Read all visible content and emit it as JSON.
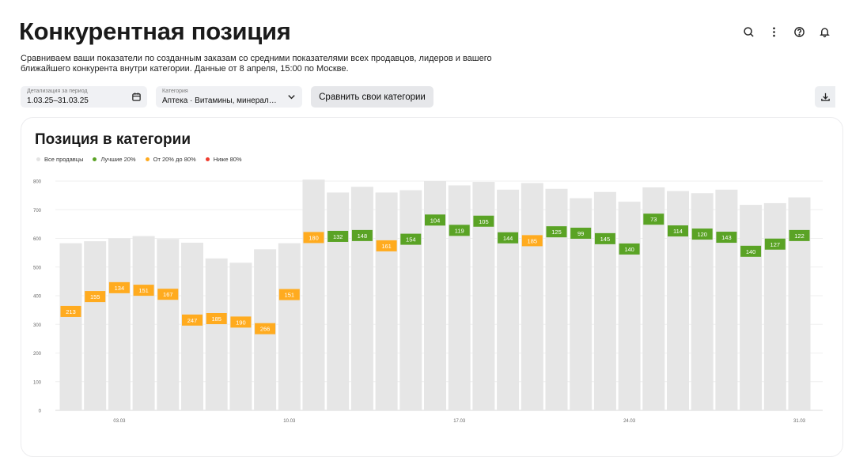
{
  "header": {
    "title": "Конкурентная позиция",
    "description": "Сравниваем ваши показатели по созданным заказам со средними показателями всех продавцов, лидеров и вашего ближайшего конкурента внутри категории. Данные от 8 апреля, 15:00 по Москве.",
    "icons": [
      "search-icon",
      "more-vertical-icon",
      "help-icon",
      "bell-icon"
    ]
  },
  "filters": {
    "period": {
      "label": "Детализация за период",
      "value": "1.03.25–31.03.25",
      "icon": "calendar-icon"
    },
    "category": {
      "label": "Категория",
      "value": "Аптека · Витамины, минералы, д...",
      "icon": "chevron-down-icon"
    },
    "compare_label": "Сравнить свои категории",
    "download_icon": "download-icon"
  },
  "card": {
    "title": "Позиция в категории",
    "legend": [
      {
        "name": "Все продавцы",
        "color": "#e6e6e6"
      },
      {
        "name": "Лучшие 20%",
        "color": "#5aa325"
      },
      {
        "name": "От 20% до 80%",
        "color": "#ffab1f"
      },
      {
        "name": "Ниже 80%",
        "color": "#f03c2e"
      }
    ]
  },
  "chart_data": {
    "type": "bar",
    "ylim": [
      0,
      800
    ],
    "y_ticks": [
      0,
      100,
      200,
      300,
      400,
      500,
      600,
      700,
      800
    ],
    "x_tick_labels": [
      {
        "day": 3,
        "label": "03.03"
      },
      {
        "day": 10,
        "label": "10.03"
      },
      {
        "day": 17,
        "label": "17.03"
      },
      {
        "day": 24,
        "label": "24.03"
      },
      {
        "day": 31,
        "label": "31.03"
      }
    ],
    "days": [
      1,
      2,
      3,
      4,
      5,
      6,
      7,
      8,
      9,
      10,
      11,
      12,
      13,
      14,
      15,
      16,
      17,
      18,
      19,
      20,
      21,
      22,
      23,
      24,
      25,
      26,
      27,
      28,
      29,
      30,
      31
    ],
    "series": [
      {
        "name": "Все продавцы",
        "values": [
          583,
          590,
          600,
          608,
          598,
          585,
          530,
          515,
          562,
          583,
          805,
          760,
          780,
          760,
          768,
          800,
          785,
          797,
          770,
          793,
          773,
          740,
          762,
          728,
          778,
          765,
          758,
          770,
          717,
          723,
          743
        ]
      },
      {
        "positions": [
          345,
          397,
          428,
          419,
          405,
          315,
          320,
          308,
          285,
          404,
          603,
          607,
          610,
          574,
          597,
          664,
          628,
          660,
          602,
          592,
          623,
          618,
          599,
          563,
          667,
          626,
          615,
          604,
          555,
          580,
          610
        ],
        "labels": [
          213,
          155,
          134,
          151,
          167,
          247,
          185,
          190,
          266,
          151,
          180,
          132,
          148,
          161,
          154,
          104,
          119,
          105,
          144,
          185,
          125,
          99,
          145,
          140,
          73,
          114,
          120,
          143,
          140,
          127,
          122
        ],
        "tiers": [
          "mid",
          "mid",
          "mid",
          "mid",
          "mid",
          "mid",
          "mid",
          "mid",
          "mid",
          "mid",
          "mid",
          "top",
          "top",
          "mid",
          "top",
          "top",
          "top",
          "top",
          "top",
          "mid",
          "top",
          "top",
          "top",
          "top",
          "top",
          "top",
          "top",
          "top",
          "top",
          "top",
          "top"
        ]
      }
    ]
  }
}
